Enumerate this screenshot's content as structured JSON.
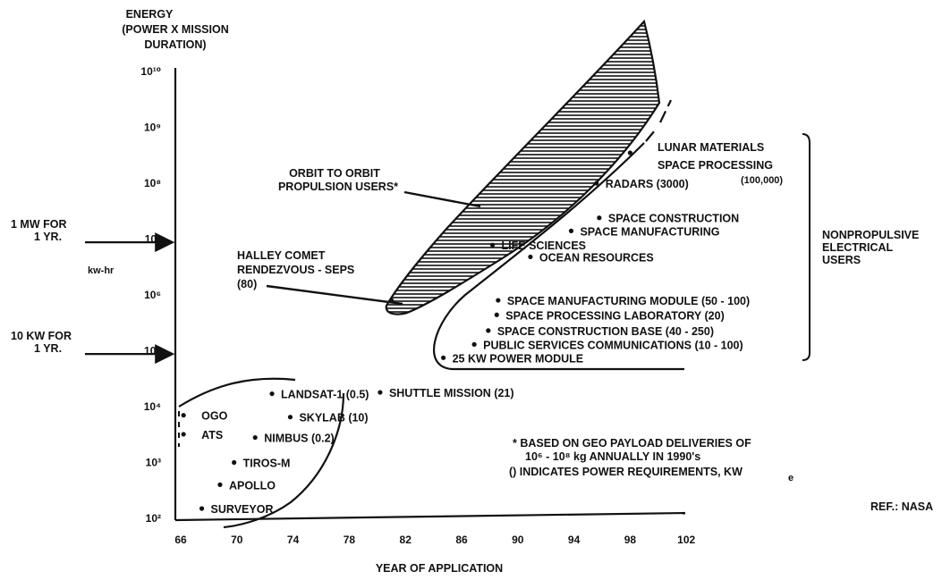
{
  "chart_data": {
    "type": "scatter",
    "y_title_lines": [
      "ENERGY",
      "(POWER X MISSION",
      "DURATION)"
    ],
    "y_unit": "kw-hr",
    "xlabel": "YEAR OF APPLICATION",
    "y_scale": "log",
    "y_ticks": [
      {
        "value": 100,
        "label": "10²"
      },
      {
        "value": 1000,
        "label": "10³"
      },
      {
        "value": 10000,
        "label": "10⁴"
      },
      {
        "value": 100000,
        "label": "10⁵"
      },
      {
        "value": 1000000,
        "label": "10⁶"
      },
      {
        "value": 10000000,
        "label": "10⁷"
      },
      {
        "value": 100000000,
        "label": "10⁸"
      },
      {
        "value": 1000000000,
        "label": "10⁹"
      },
      {
        "value": 10000000000,
        "label": "10¹⁰"
      }
    ],
    "x_ticks": [
      "66",
      "70",
      "74",
      "78",
      "82",
      "86",
      "90",
      "94",
      "98",
      "102"
    ],
    "xlim": [
      66,
      102
    ],
    "ylim": [
      100,
      10000000000
    ],
    "reference_lines": [
      {
        "label_lines": [
          "1 MW FOR",
          "1 YR."
        ],
        "y": 8760000
      },
      {
        "label_lines": [
          "10 KW FOR",
          "1 YR."
        ],
        "y": 87600
      }
    ],
    "points": [
      {
        "label": "SURVEYOR",
        "x": 67.5,
        "y": 150
      },
      {
        "label": "APOLLO",
        "x": 68.8,
        "y": 400
      },
      {
        "label": "TIROS-M",
        "x": 69.8,
        "y": 1000
      },
      {
        "label": "NIMBUS (0.2)",
        "x": 71.3,
        "y": 2800
      },
      {
        "label": "SKYLAB (10)",
        "x": 73.8,
        "y": 6500
      },
      {
        "label": "LANDSAT-1 (0.5)",
        "x": 72.5,
        "y": 17000
      },
      {
        "label": "SHUTTLE MISSION (21)",
        "x": 80.2,
        "y": 18000
      },
      {
        "label": "OGO",
        "x": 66.2,
        "y": 7000
      },
      {
        "label": "ATS",
        "x": 66.2,
        "y": 3200
      },
      {
        "label": "25 KW POWER MODULE",
        "x": 84.7,
        "y": 75000
      },
      {
        "label": "PUBLIC SERVICES COMMUNICATIONS (10 - 100)",
        "x": 86.9,
        "y": 130000
      },
      {
        "label": "SPACE CONSTRUCTION BASE (40 - 250)",
        "x": 87.9,
        "y": 230000
      },
      {
        "label": "SPACE PROCESSING LABORATORY (20)",
        "x": 88.5,
        "y": 440000
      },
      {
        "label": "SPACE MANUFACTURING MODULE (50 - 100)",
        "x": 88.6,
        "y": 800000
      },
      {
        "label": "OCEAN RESOURCES",
        "x": 90.9,
        "y": 4800000
      },
      {
        "label": "LIFE SCIENCES",
        "x": 88.2,
        "y": 7800000
      },
      {
        "label": "SPACE MANUFACTURING",
        "x": 93.8,
        "y": 14000000
      },
      {
        "label": "SPACE CONSTRUCTION",
        "x": 95.8,
        "y": 24000000
      },
      {
        "label": "RADARS (3000)",
        "x": 95.6,
        "y": 100000000
      },
      {
        "label": "LUNAR MATERIALS SPACE PROCESSING (100,000)",
        "x": 98.0,
        "y": 350000000
      },
      {
        "label": "HALLEY COMET RENDEZVOUS - SEPS (80)",
        "x": 81.0,
        "y": 800000
      }
    ]
  },
  "texts": {
    "orbit_line1": "ORBIT TO ORBIT",
    "orbit_line2": "PROPULSION USERS*",
    "halley_line1": "HALLEY COMET",
    "halley_line2": "RENDEZVOUS - SEPS",
    "halley_line3": "(80)",
    "nonprop_line1": "NONPROPULSIVE",
    "nonprop_line2": "ELECTRICAL",
    "nonprop_line3": "USERS",
    "lunar_line1": "LUNAR MATERIALS",
    "lunar_line2": "SPACE PROCESSING",
    "lunar_line3": "(100,000)",
    "footnote_line1": "* BASED ON GEO PAYLOAD DELIVERIES OF",
    "footnote_line2": "10⁶ - 10⁸ kg ANNUALLY IN 1990's",
    "footnote_line3": "() INDICATES POWER REQUIREMENTS, KW",
    "footnote_sub": "e",
    "reference": "REF.: NASA"
  }
}
